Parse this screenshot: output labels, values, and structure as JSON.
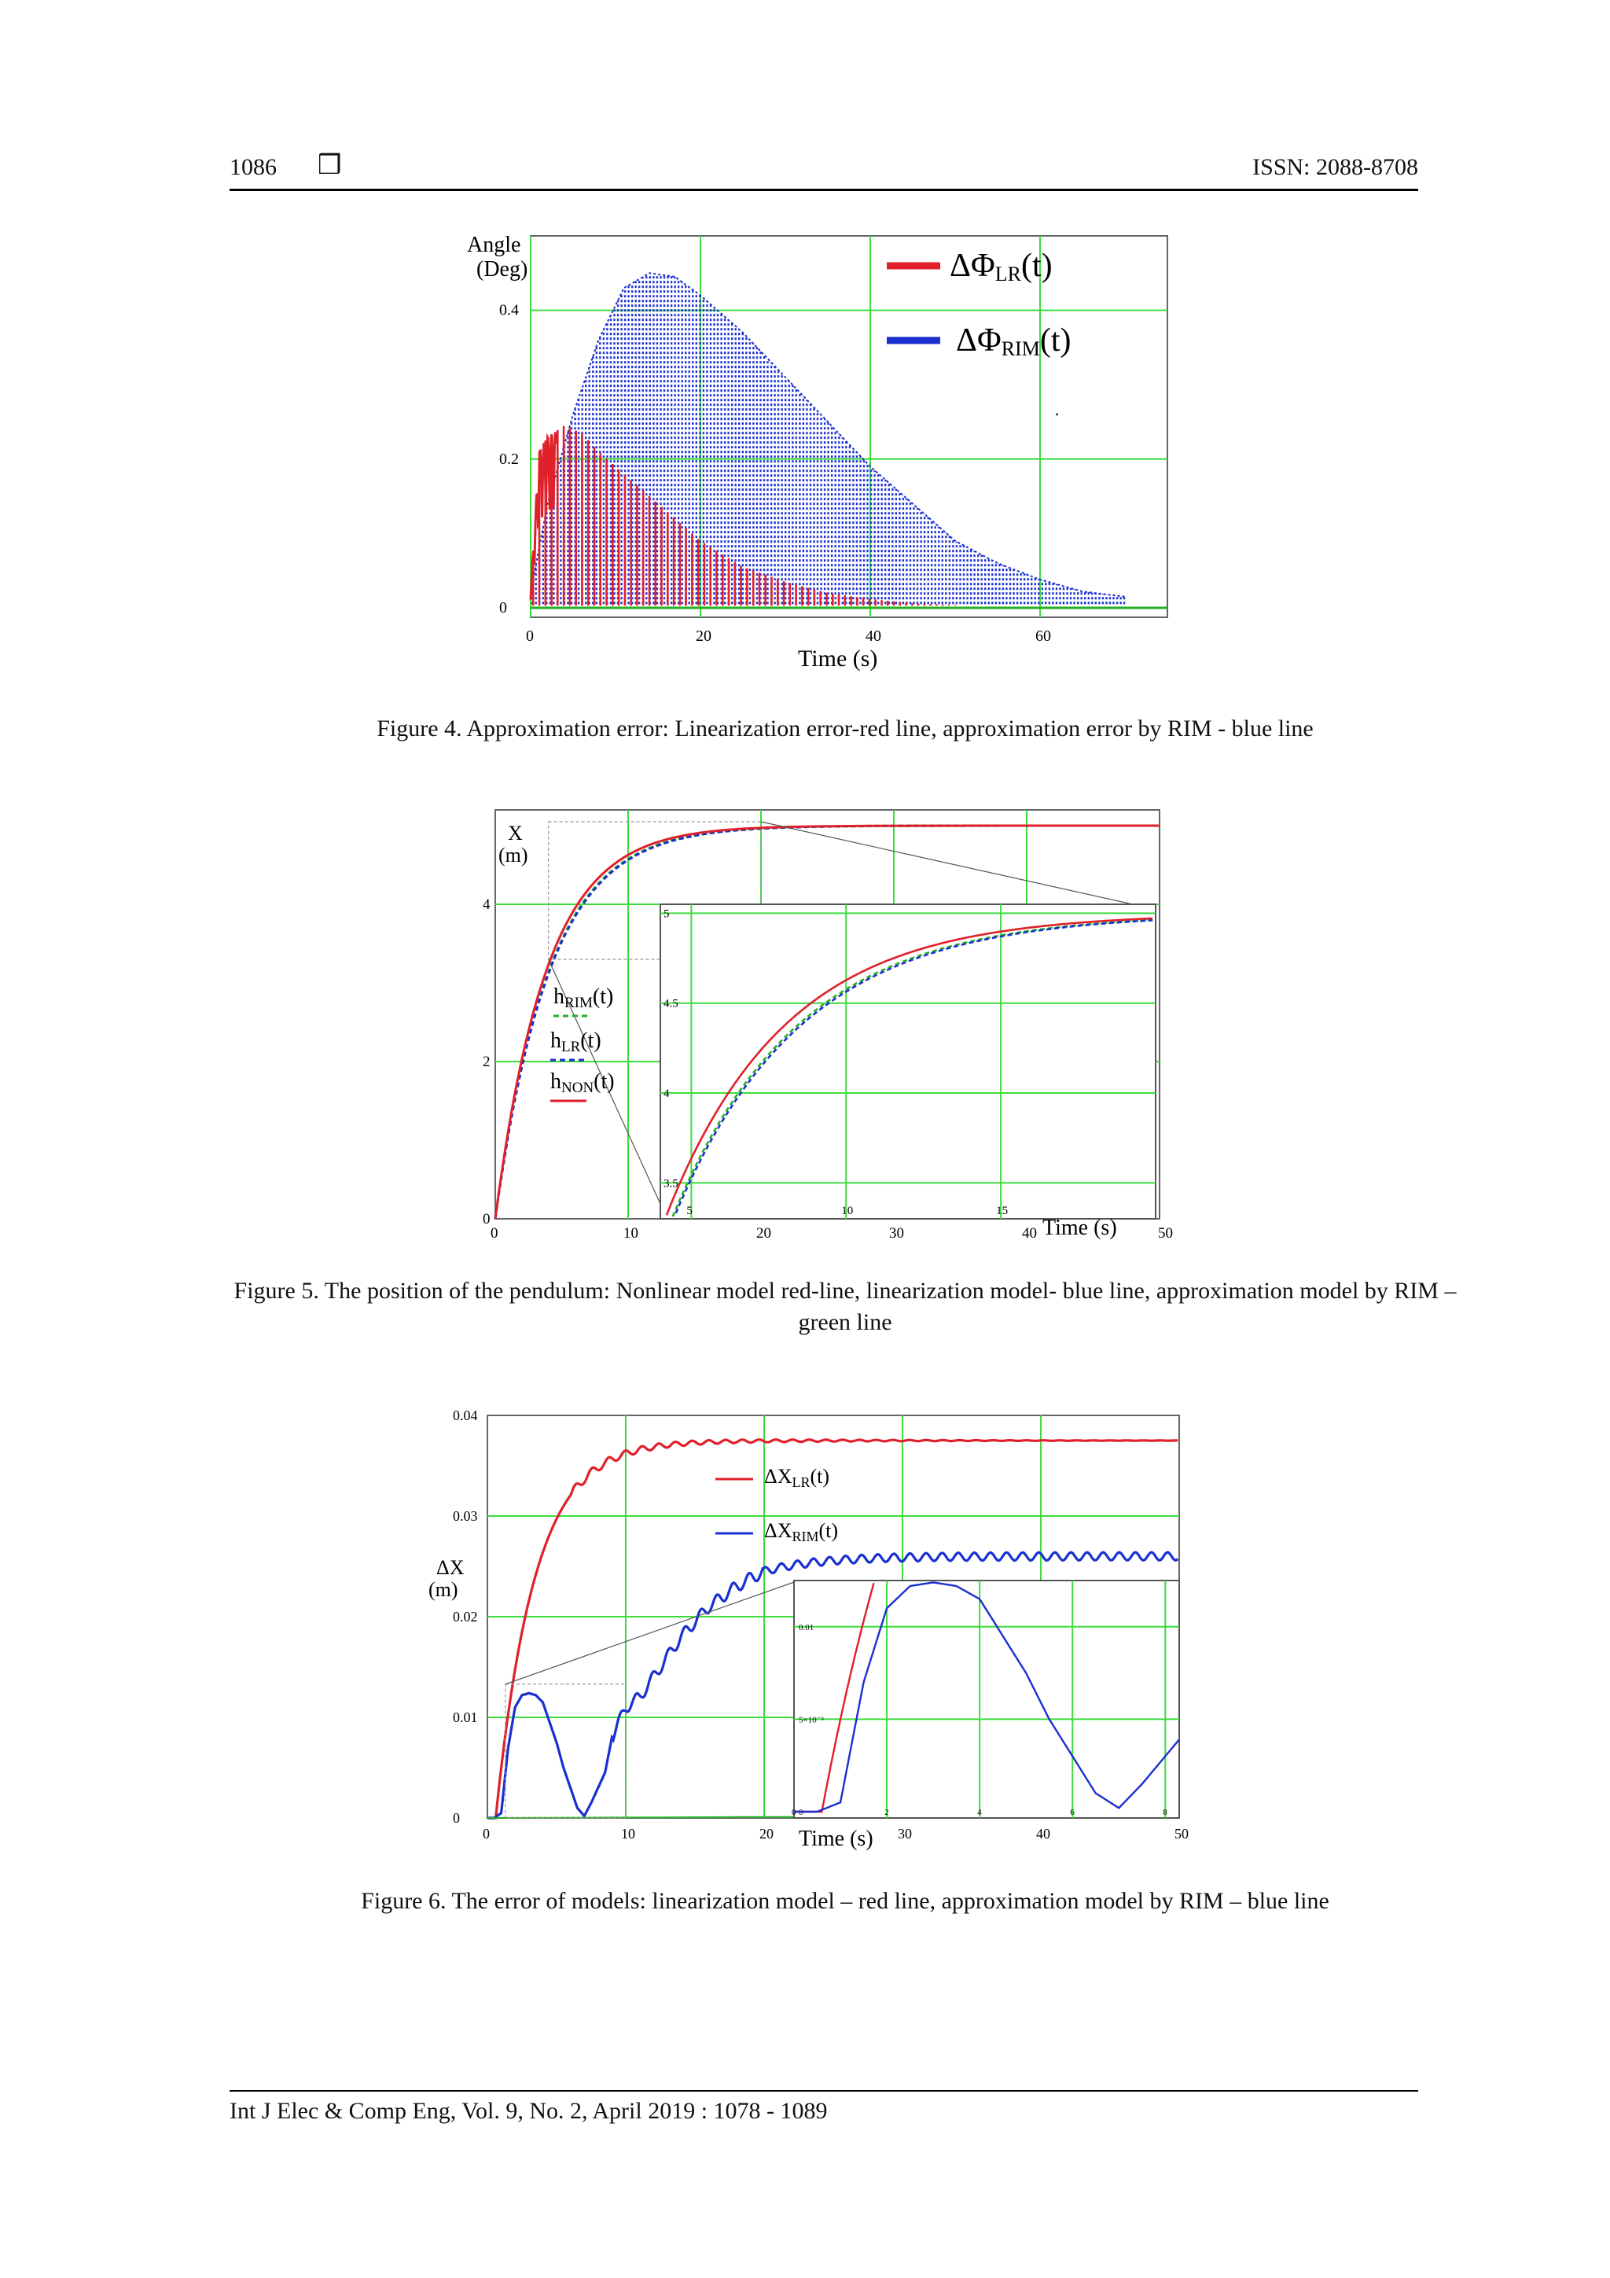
{
  "header": {
    "page_number": "1086",
    "box_glyph": "❒",
    "issn": "ISSN: 2088-8708"
  },
  "footer": {
    "citation": "Int J Elec & Comp Eng, Vol. 9, No. 2, April 2019 :  1078 - 1089"
  },
  "figures": [
    {
      "caption": "Figure 4. Approximation error: Linearization error-red line, approximation error by RIM - blue line"
    },
    {
      "caption": "Figure 5. The position of the pendulum: Nonlinear model red-line, linearization model- blue line, approximation model by RIM – green line"
    },
    {
      "caption": "Figure 6. The error of models: linearization model – red line, approximation model by RIM – blue line"
    }
  ],
  "colors": {
    "red": "#e0202a",
    "blue": "#1a2fd0",
    "green": "#22b022",
    "grid": "#3ddc3d"
  },
  "chart_data": [
    {
      "type": "line",
      "ylabel_line1": "Angle",
      "ylabel_line2": "(Deg)",
      "xlabel": "Time (s)",
      "xlim": [
        0,
        75
      ],
      "ylim": [
        0,
        0.5
      ],
      "xticks": [
        "0",
        "20",
        "40",
        "60"
      ],
      "yticks": [
        "0",
        "0.2",
        "0.4"
      ],
      "grid": true,
      "legend": "top-right",
      "series": [
        {
          "name": "ΔΦ",
          "subscript": "LR",
          "arg": "(t)",
          "color": "#e0202a",
          "envelope": {
            "x": [
              0,
              1,
              2,
              4,
              6,
              8,
              12,
              16,
              20,
              25,
              30,
              35,
              40,
              45,
              50
            ],
            "y": [
              0.02,
              0.21,
              0.23,
              0.245,
              0.235,
              0.21,
              0.17,
              0.13,
              0.09,
              0.055,
              0.035,
              0.02,
              0.012,
              0.006,
              0.004
            ]
          }
        },
        {
          "name": "ΔΦ",
          "subscript": "RIM",
          "arg": "(t)",
          "color": "#1a2fd0",
          "envelope": {
            "x": [
              0,
              2,
              5,
              8,
              11,
              14,
              17,
              20,
              25,
              30,
              35,
              40,
              45,
              50,
              55,
              60,
              65,
              70
            ],
            "y": [
              0.02,
              0.14,
              0.26,
              0.36,
              0.43,
              0.45,
              0.445,
              0.42,
              0.37,
              0.31,
              0.25,
              0.19,
              0.14,
              0.09,
              0.06,
              0.038,
              0.022,
              0.015
            ]
          }
        }
      ]
    },
    {
      "type": "line",
      "ylabel_line1": "X",
      "ylabel_line2": "(m)",
      "xlabel": "Time (s)",
      "xlim": [
        0,
        50
      ],
      "ylim": [
        0,
        5.2
      ],
      "xticks": [
        "0",
        "10",
        "20",
        "30",
        "40",
        "50"
      ],
      "yticks": [
        "0",
        "2",
        "4"
      ],
      "grid": true,
      "legend": "left",
      "series": [
        {
          "name": "h",
          "subscript": "RIM",
          "arg": "(t)",
          "color": "#22b022",
          "tau": 4.05
        },
        {
          "name": "h",
          "subscript": "LR",
          "arg": "(t)",
          "color": "#1a2fd0",
          "tau": 4.1
        },
        {
          "name": "h",
          "subscript": "NON",
          "arg": "(t)",
          "color": "#e0202a",
          "tau": 3.85
        }
      ],
      "final_value": 5.0,
      "inset": {
        "xlim": [
          4,
          20
        ],
        "ylim": [
          3.3,
          5.05
        ],
        "xticks": [
          "5",
          "10",
          "15"
        ],
        "yticks": [
          "3.5",
          "4",
          "4.5",
          "5"
        ]
      }
    },
    {
      "type": "line",
      "ylabel_line1": "ΔX",
      "ylabel_line2": "(m)",
      "xlabel": "Time (s)",
      "xlim": [
        0,
        50
      ],
      "ylim": [
        0,
        0.04
      ],
      "xticks": [
        "0",
        "10",
        "20",
        "30",
        "40",
        "50"
      ],
      "yticks": [
        "0",
        "0.01",
        "0.02",
        "0.03",
        "0.04"
      ],
      "grid": true,
      "legend": "top-right",
      "series": [
        {
          "name": "ΔX",
          "subscript": "LR",
          "arg": "(t)",
          "color": "#e0202a",
          "final_value": 0.0375
        },
        {
          "name": "ΔX",
          "subscript": "RIM",
          "arg": "(t)",
          "color": "#1a2fd0",
          "final_value": 0.026,
          "early": {
            "x": [
              0,
              0.5,
              1,
              1.5,
              2,
              2.5,
              3,
              3.5,
              4,
              4.5,
              5,
              5.5,
              6,
              6.5,
              7,
              7.5,
              8,
              8.5,
              9,
              10,
              11,
              12,
              13,
              14,
              15,
              16,
              17,
              18,
              19,
              20
            ],
            "y": [
              0,
              0,
              0.0005,
              0.007,
              0.011,
              0.0122,
              0.0124,
              0.0122,
              0.0115,
              0.0095,
              0.0075,
              0.005,
              0.003,
              0.001,
              0.0002,
              0.0015,
              0.003,
              0.0045,
              0.008,
              0.011,
              0.012,
              0.014,
              0.016,
              0.018,
              0.0195,
              0.021,
              0.022,
              0.023,
              0.0238,
              0.0245
            ]
          }
        }
      ],
      "inset": {
        "xlim": [
          0,
          8.3
        ],
        "ylim": [
          0,
          0.0125
        ],
        "xticks": [
          "0",
          "2",
          "4",
          "6",
          "8"
        ],
        "ytick_labels": [
          "0",
          "5×10⁻³",
          "0.01"
        ]
      }
    }
  ]
}
